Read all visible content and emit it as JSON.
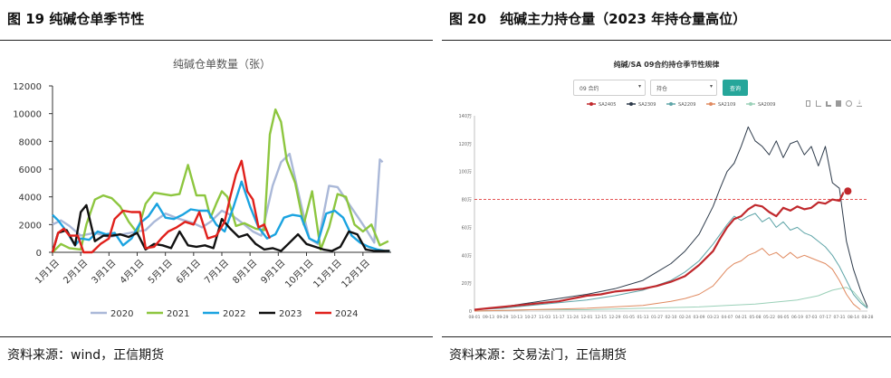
{
  "left": {
    "figure_title": "图 19 纯碱仓单季节性",
    "source": "资料来源：wind，正信期货"
  },
  "right": {
    "figure_title": "图 20　纯碱主力持仓量（2023 年持仓量高位）",
    "source": "资料来源：交易法门，正信期货",
    "controls": {
      "contract_select": "09 合约",
      "metric_select": "持仓",
      "query_button": "查询"
    },
    "toolbar_icons": [
      "file-icon",
      "line-chart-icon",
      "bar-chart-icon",
      "stack-icon",
      "refresh-icon",
      "download-icon"
    ]
  },
  "chart_data": [
    {
      "type": "line",
      "title": "纯碱仓单数量（张）",
      "xlabel": "",
      "ylabel": "",
      "ylim": [
        0,
        12000
      ],
      "yticks": [
        0,
        2000,
        4000,
        6000,
        8000,
        10000,
        12000
      ],
      "categories": [
        "1月1日",
        "2月1日",
        "3月1日",
        "4月1日",
        "5月1日",
        "6月1日",
        "7月1日",
        "8月1日",
        "9月1日",
        "10月1日",
        "11月1日",
        "12月1日"
      ],
      "legend_position": "bottom",
      "grid": false,
      "series": [
        {
          "name": "2020",
          "color": "#aab8d8",
          "x": [
            0,
            0.3,
            0.6,
            1,
            1.5,
            2,
            2.5,
            3,
            3.3,
            3.6,
            4,
            4.5,
            5,
            5.3,
            5.6,
            6,
            6.4,
            6.8,
            7.1,
            7.4,
            7.8,
            8.1,
            8.4,
            8.8,
            9.1,
            9.4,
            9.8,
            10.1,
            10.4,
            10.8,
            11.1,
            11.4,
            11.6,
            11.7
          ],
          "y": [
            2000,
            2300,
            1900,
            1200,
            1400,
            1100,
            1300,
            1500,
            1600,
            2200,
            2800,
            2400,
            2100,
            1800,
            2200,
            3000,
            2600,
            2000,
            1500,
            1200,
            4800,
            6500,
            7100,
            3500,
            1000,
            600,
            4800,
            4700,
            3800,
            2600,
            1700,
            700,
            6700,
            6500
          ]
        },
        {
          "name": "2021",
          "color": "#8dc63f",
          "x": [
            0,
            0.3,
            0.6,
            1,
            1.2,
            1.5,
            1.8,
            2.1,
            2.4,
            2.7,
            3,
            3.3,
            3.6,
            3.9,
            4.2,
            4.5,
            4.8,
            5.1,
            5.4,
            5.6,
            5.8,
            6,
            6.2,
            6.5,
            6.8,
            7.2,
            7.5,
            7.7,
            7.9,
            8.1,
            8.3,
            8.6,
            8.9,
            9.2,
            9.5,
            9.8,
            10.1,
            10.4,
            10.7,
            11,
            11.3,
            11.6,
            11.9
          ],
          "y": [
            0,
            600,
            300,
            200,
            2000,
            3800,
            4100,
            3900,
            3300,
            2200,
            1400,
            3500,
            4300,
            4200,
            4100,
            4200,
            6300,
            4100,
            4100,
            2500,
            3500,
            4400,
            4000,
            1900,
            2100,
            1700,
            1600,
            8500,
            10300,
            9400,
            6600,
            5000,
            2000,
            4400,
            200,
            1800,
            4200,
            4000,
            2000,
            1500,
            2000,
            500,
            800
          ]
        },
        {
          "name": "2022",
          "color": "#1aa3e0",
          "x": [
            0,
            0.2,
            0.5,
            0.8,
            1,
            1.3,
            1.6,
            1.9,
            2.2,
            2.5,
            2.8,
            3.1,
            3.4,
            3.7,
            4,
            4.3,
            4.6,
            4.9,
            5.2,
            5.5,
            5.8,
            6.1,
            6.4,
            6.7,
            7,
            7.3,
            7.6,
            7.9,
            8.2,
            8.5,
            8.8,
            9.1,
            9.4,
            9.7,
            10,
            10.3,
            10.6,
            10.9,
            11.2,
            11.5,
            11.8,
            11.95
          ],
          "y": [
            2700,
            2300,
            1500,
            500,
            1000,
            900,
            1500,
            1300,
            1400,
            500,
            1000,
            2100,
            2600,
            3500,
            2500,
            2400,
            2700,
            3100,
            3000,
            3000,
            2000,
            1500,
            3200,
            5100,
            3300,
            1800,
            1000,
            1300,
            2500,
            2700,
            2600,
            1000,
            700,
            2800,
            3000,
            2500,
            1200,
            700,
            400,
            200,
            100,
            100
          ]
        },
        {
          "name": "2023",
          "color": "#111111",
          "x": [
            0,
            0.2,
            0.5,
            0.8,
            1,
            1.2,
            1.5,
            1.8,
            2.1,
            2.4,
            2.7,
            3,
            3.3,
            3.6,
            3.9,
            4.2,
            4.5,
            4.8,
            5.1,
            5.4,
            5.7,
            6,
            6.3,
            6.6,
            6.9,
            7.2,
            7.5,
            7.8,
            8.1,
            8.4,
            8.7,
            9,
            9.3,
            9.6,
            9.9,
            10.2,
            10.5,
            10.8,
            11.1,
            11.4,
            11.7,
            11.95
          ],
          "y": [
            0,
            1400,
            1600,
            500,
            2900,
            3400,
            800,
            1200,
            1200,
            1300,
            1100,
            1400,
            200,
            600,
            500,
            300,
            1500,
            500,
            400,
            500,
            300,
            2400,
            1700,
            1100,
            1300,
            600,
            200,
            300,
            100,
            700,
            1300,
            600,
            400,
            200,
            100,
            400,
            1500,
            1300,
            200,
            100,
            100,
            100
          ]
        },
        {
          "name": "2024",
          "color": "#e0201b",
          "x": [
            0,
            0.2,
            0.4,
            0.6,
            0.9,
            1.1,
            1.4,
            1.7,
            2,
            2.2,
            2.5,
            2.8,
            3.1,
            3.3,
            3.6,
            3.9,
            4.1,
            4.4,
            4.7,
            5,
            5.2,
            5.5,
            5.8,
            6.1,
            6.3,
            6.5,
            6.7,
            6.9,
            7.1,
            7.3,
            7.5,
            7.7
          ],
          "y": [
            0,
            1400,
            1700,
            1200,
            1200,
            0,
            0,
            600,
            1000,
            2400,
            3000,
            2900,
            2900,
            300,
            400,
            1100,
            1500,
            1800,
            2200,
            2000,
            2900,
            1000,
            1200,
            2200,
            4000,
            5600,
            6600,
            4400,
            3800,
            1800,
            2000,
            1000
          ]
        }
      ]
    },
    {
      "type": "line",
      "title": "纯碱/SA 09合约持仓季节性规律",
      "xlabel": "",
      "ylabel": "",
      "ylim": [
        0,
        140
      ],
      "yticks": [
        "0",
        "20万",
        "40万",
        "60万",
        "80万",
        "100万",
        "120万",
        "140万"
      ],
      "categories": [
        "08-01",
        "09-13",
        "09-29",
        "10-13",
        "10-27",
        "11-03",
        "11-17",
        "11-24",
        "12-01",
        "12-15",
        "12-29",
        "01-05",
        "01-13",
        "01-27",
        "02-10",
        "02-24",
        "03-09",
        "03-23",
        "04-07",
        "04-21",
        "05-08",
        "05-22",
        "06-05",
        "06-19",
        "07-03",
        "07-17",
        "07-31",
        "08-14",
        "08-28"
      ],
      "reference_line": 80,
      "legend_position": "top",
      "grid": false,
      "series": [
        {
          "name": "SA2405",
          "color": "#c0282c",
          "x": [
            0,
            1,
            2,
            3,
            4,
            5,
            6,
            7,
            8,
            9,
            10,
            11,
            12,
            13,
            14,
            15,
            16,
            17,
            17.5,
            18,
            18.5,
            19,
            19.5,
            20,
            20.5,
            21,
            21.5,
            22,
            22.5,
            23,
            23.5,
            24,
            24.5,
            25,
            25.5,
            26,
            26.3,
            26.6
          ],
          "y": [
            1,
            2,
            3,
            4,
            5,
            6,
            7,
            9,
            11,
            12,
            14,
            15,
            16,
            18,
            21,
            25,
            33,
            43,
            52,
            60,
            66,
            68,
            73,
            76,
            75,
            71,
            68,
            74,
            72,
            75,
            73,
            74,
            78,
            77,
            80,
            79,
            85,
            86
          ]
        },
        {
          "name": "SA2309",
          "color": "#2d3a4a",
          "x": [
            0,
            2,
            4,
            6,
            8,
            10,
            12,
            13,
            14,
            15,
            16,
            17,
            17.5,
            18,
            18.5,
            19,
            19.5,
            20,
            20.5,
            21,
            21.5,
            22,
            22.5,
            23,
            23.5,
            24,
            24.5,
            25,
            25.5,
            26,
            26.5,
            27,
            27.5,
            28
          ],
          "y": [
            1,
            3,
            6,
            9,
            12,
            16,
            22,
            28,
            34,
            43,
            55,
            75,
            88,
            100,
            106,
            118,
            132,
            122,
            118,
            112,
            122,
            110,
            120,
            122,
            112,
            118,
            104,
            118,
            92,
            88,
            50,
            30,
            15,
            3
          ]
        },
        {
          "name": "SA2209",
          "color": "#5fa5a8",
          "x": [
            0,
            2,
            4,
            6,
            8,
            10,
            12,
            14,
            15,
            16,
            17,
            17.5,
            18,
            18.5,
            19,
            19.5,
            20,
            20.5,
            21,
            21.5,
            22,
            22.5,
            23,
            23.5,
            24,
            24.5,
            25,
            25.5,
            26,
            26.5,
            27,
            27.5,
            28
          ],
          "y": [
            1,
            2,
            4,
            6,
            8,
            11,
            15,
            22,
            28,
            36,
            48,
            55,
            62,
            68,
            65,
            68,
            70,
            64,
            67,
            60,
            64,
            58,
            60,
            56,
            54,
            50,
            46,
            40,
            32,
            22,
            12,
            6,
            2
          ]
        },
        {
          "name": "SA2109",
          "color": "#e08a60",
          "x": [
            0,
            4,
            8,
            12,
            14,
            15,
            16,
            17,
            17.5,
            18,
            18.5,
            19,
            19.5,
            20,
            20.5,
            21,
            21.5,
            22,
            22.5,
            23,
            23.5,
            24,
            24.5,
            25,
            25.5,
            26,
            26.5,
            27,
            27.5
          ],
          "y": [
            0,
            1,
            2,
            4,
            7,
            9,
            12,
            18,
            24,
            30,
            34,
            36,
            40,
            42,
            45,
            40,
            42,
            38,
            42,
            38,
            40,
            38,
            36,
            34,
            30,
            22,
            12,
            5,
            1
          ]
        },
        {
          "name": "SA2009",
          "color": "#9ad0b8",
          "x": [
            0,
            4,
            8,
            12,
            16,
            18,
            20,
            21,
            22,
            23,
            24,
            24.5,
            25,
            25.5,
            26,
            26.5,
            27,
            27.5,
            28
          ],
          "y": [
            0,
            1,
            1,
            2,
            3,
            4,
            5,
            6,
            7,
            8,
            10,
            11,
            13,
            15,
            16,
            17,
            14,
            8,
            2
          ]
        }
      ]
    }
  ]
}
